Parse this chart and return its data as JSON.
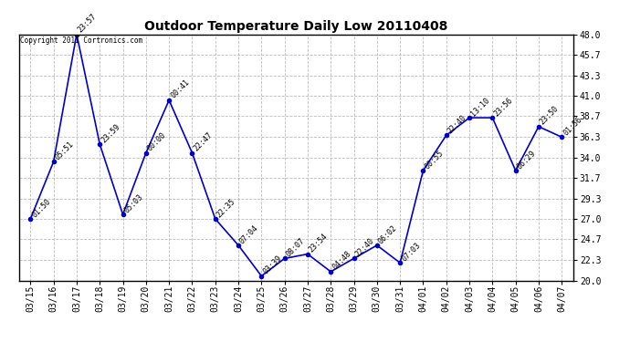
{
  "title": "Outdoor Temperature Daily Low 20110408",
  "copyright": "Copyright 2011 Cortronics.com",
  "line_color": "#0000cc",
  "background_color": "#ffffff",
  "grid_color": "#bbbbbb",
  "ylim": [
    20.0,
    48.0
  ],
  "yticks": [
    20.0,
    22.3,
    24.7,
    27.0,
    29.3,
    31.7,
    34.0,
    36.3,
    38.7,
    41.0,
    43.3,
    45.7,
    48.0
  ],
  "dates": [
    "03/15",
    "03/16",
    "03/17",
    "03/18",
    "03/19",
    "03/20",
    "03/21",
    "03/22",
    "03/23",
    "03/24",
    "03/25",
    "03/26",
    "03/27",
    "03/28",
    "03/29",
    "03/30",
    "03/31",
    "04/01",
    "04/02",
    "04/03",
    "04/04",
    "04/05",
    "04/06",
    "04/07"
  ],
  "values": [
    27.0,
    33.5,
    48.0,
    35.5,
    27.5,
    34.5,
    40.5,
    34.5,
    27.0,
    24.0,
    20.5,
    22.5,
    23.0,
    21.0,
    22.5,
    24.0,
    22.0,
    32.5,
    36.5,
    38.5,
    38.5,
    32.5,
    37.5,
    36.3
  ],
  "annotations": [
    "01:50",
    "05:51",
    "23:57",
    "23:59",
    "05:03",
    "00:00",
    "00:41",
    "22:47",
    "22:35",
    "07:04",
    "03:39",
    "08:07",
    "23:54",
    "04:48",
    "22:40",
    "06:02",
    "07:03",
    "00:55",
    "22:40",
    "13:10",
    "23:56",
    "06:29",
    "23:50",
    "01:56"
  ],
  "figsize": [
    6.9,
    3.75
  ],
  "dpi": 100
}
